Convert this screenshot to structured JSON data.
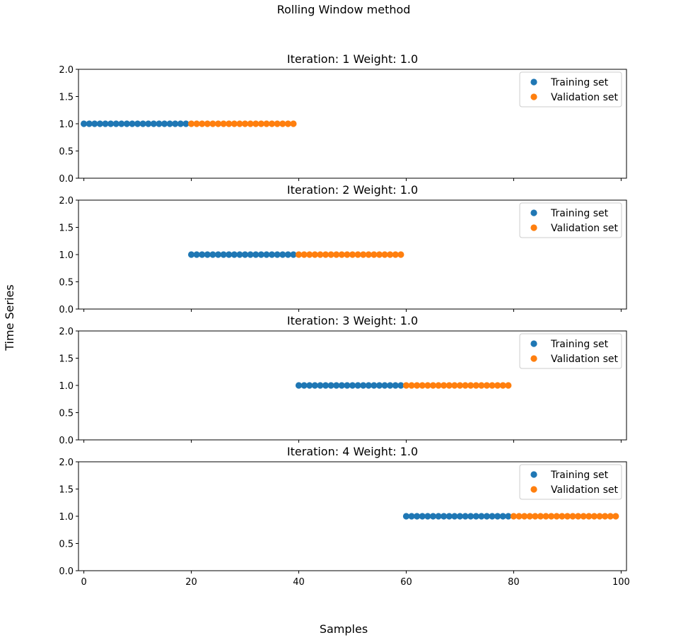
{
  "chart_data": {
    "type": "scatter",
    "title": "Rolling Window method",
    "xlabel": "Samples",
    "ylabel": "Time Series",
    "xlim": [
      -1,
      101
    ],
    "ylim": [
      0,
      2
    ],
    "xticks": [
      0,
      20,
      40,
      60,
      80,
      100
    ],
    "yticks": [
      0.0,
      0.5,
      1.0,
      1.5,
      2.0
    ],
    "ytick_labels": [
      "0.0",
      "0.5",
      "1.0",
      "1.5",
      "2.0"
    ],
    "legend_position": "upper right",
    "colors": {
      "train": "#1f77b4",
      "validation": "#ff7f0e"
    },
    "series_names": {
      "train": "Training set",
      "validation": "Validation set"
    },
    "panels": [
      {
        "title": "Iteration: 1 Weight: 1.0",
        "train_range": [
          0,
          19
        ],
        "validation_range": [
          20,
          39
        ],
        "y": 1.0
      },
      {
        "title": "Iteration: 2 Weight: 1.0",
        "train_range": [
          20,
          39
        ],
        "validation_range": [
          40,
          59
        ],
        "y": 1.0
      },
      {
        "title": "Iteration: 3 Weight: 1.0",
        "train_range": [
          40,
          59
        ],
        "validation_range": [
          60,
          79
        ],
        "y": 1.0
      },
      {
        "title": "Iteration: 4 Weight: 1.0",
        "train_range": [
          60,
          79
        ],
        "validation_range": [
          80,
          99
        ],
        "y": 1.0
      }
    ]
  }
}
